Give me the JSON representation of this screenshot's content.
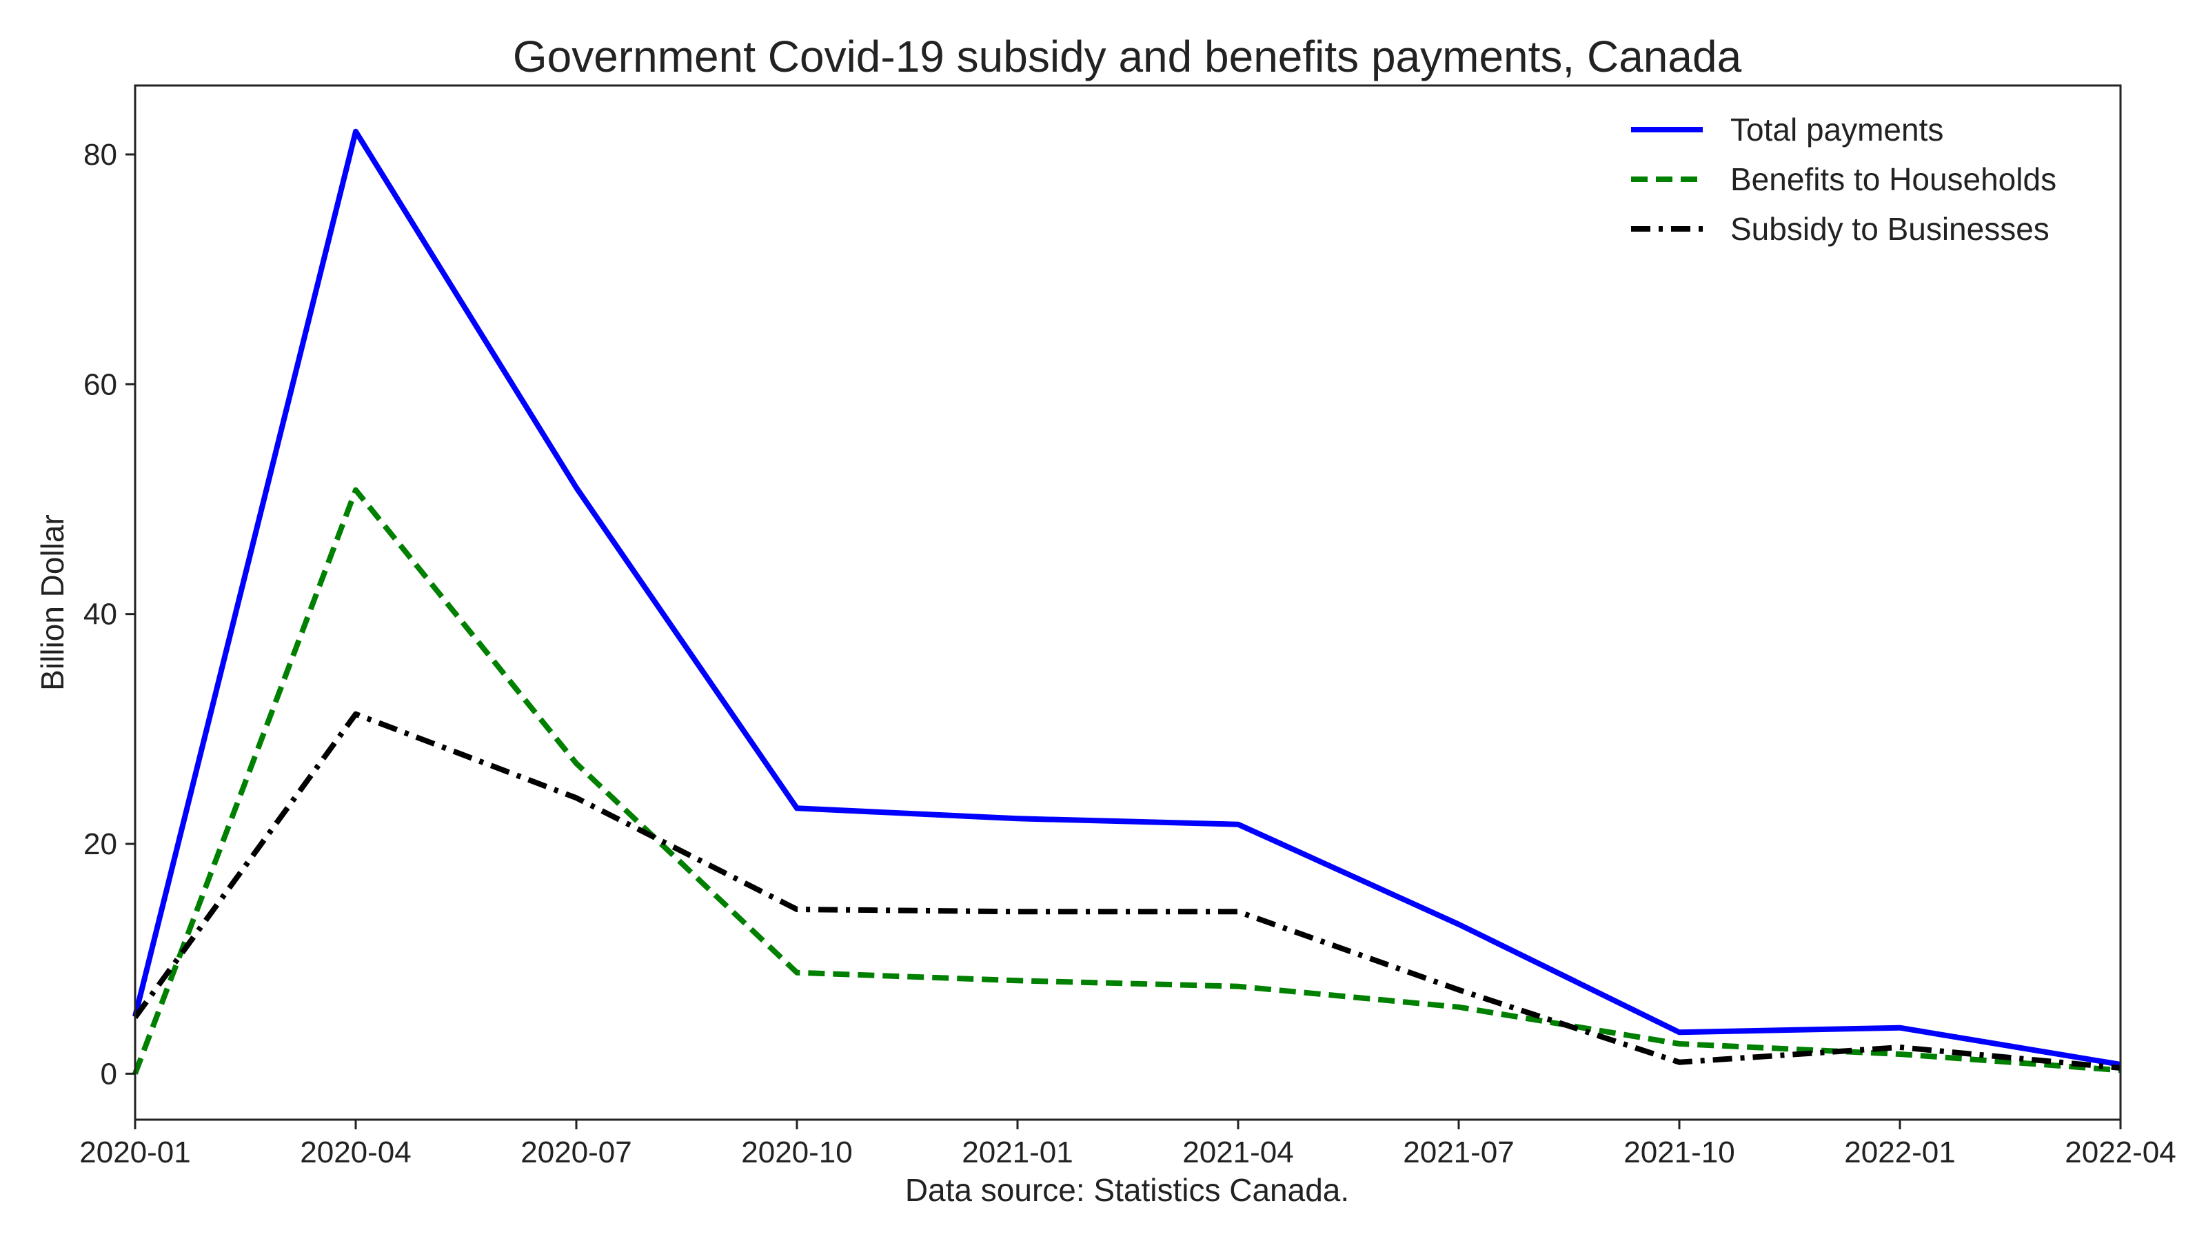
{
  "chart_data": {
    "type": "line",
    "title": "Government Covid-19 subsidy and benefits payments, Canada",
    "xlabel": "Data source: Statistics Canada.",
    "ylabel": "Billion Dollar",
    "x": [
      "2020-01",
      "2020-04",
      "2020-07",
      "2020-10",
      "2021-01",
      "2021-04",
      "2021-07",
      "2021-10",
      "2022-01",
      "2022-04"
    ],
    "x_ticks": [
      "2020-01",
      "2020-04",
      "2020-07",
      "2020-10",
      "2021-01",
      "2021-04",
      "2021-07",
      "2021-10",
      "2022-01",
      "2022-04"
    ],
    "y_ticks": [
      0,
      20,
      40,
      60,
      80
    ],
    "ylim": [
      -4,
      86
    ],
    "grid": false,
    "legend_position": "top-right",
    "series": [
      {
        "name": "Total payments",
        "color": "#0000ff",
        "style": "solid",
        "values": [
          5.0,
          82.0,
          51.0,
          23.1,
          22.2,
          21.7,
          13.0,
          3.6,
          4.0,
          0.8
        ]
      },
      {
        "name": "Benefits to Households",
        "color": "#008000",
        "style": "dashed",
        "values": [
          0.0,
          50.8,
          27.0,
          8.8,
          8.1,
          7.6,
          5.8,
          2.6,
          1.7,
          0.3
        ]
      },
      {
        "name": "Subsidy to Businesses",
        "color": "#000000",
        "style": "dashdot",
        "values": [
          4.9,
          31.3,
          24.0,
          14.3,
          14.1,
          14.1,
          7.3,
          1.0,
          2.3,
          0.5
        ]
      }
    ]
  }
}
